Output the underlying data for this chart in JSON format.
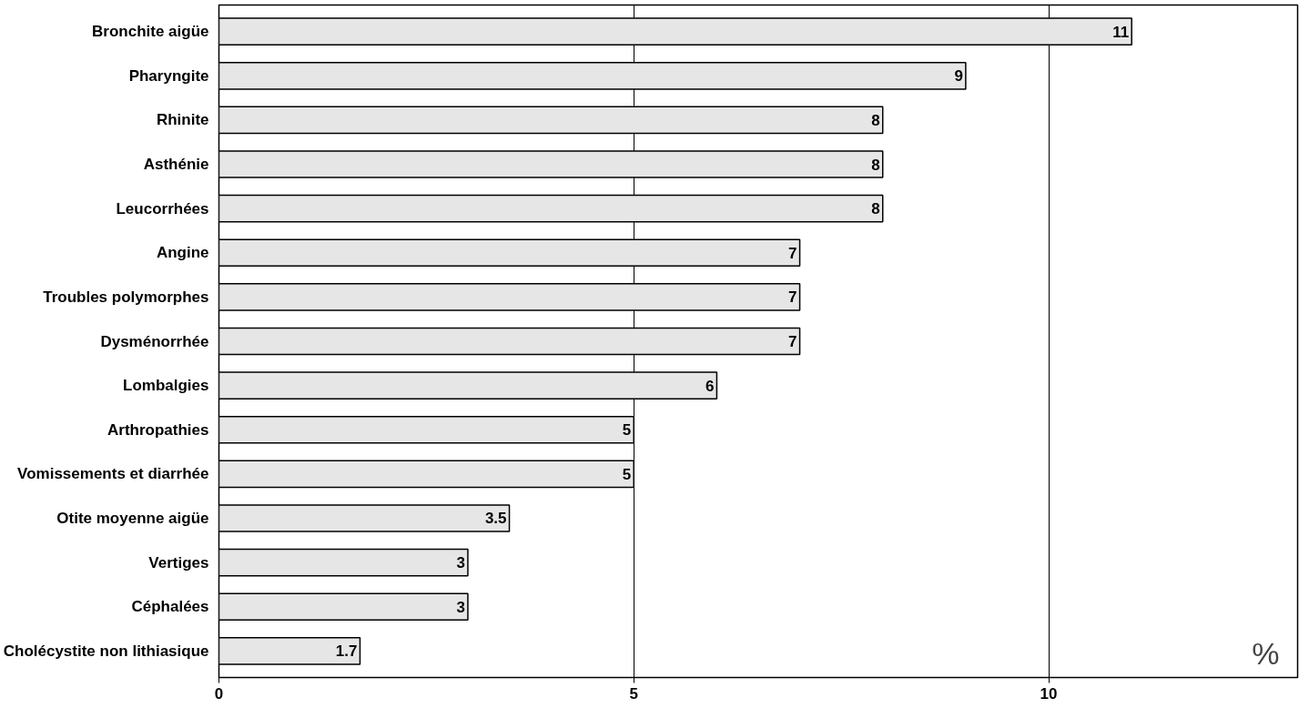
{
  "chart_data": {
    "type": "bar",
    "orientation": "horizontal",
    "xlabel": "%",
    "categories": [
      "Bronchite aigüe",
      "Pharyngite",
      "Rhinite",
      "Asthénie",
      "Leucorrhées",
      "Angine",
      "Troubles polymorphes",
      "Dysménorrhée",
      "Lombalgies",
      "Arthropathies",
      "Vomissements et diarrhée",
      "Otite moyenne aigüe",
      "Vertiges",
      "Céphalées",
      "Cholécystite non lithiasique"
    ],
    "values": [
      11,
      9,
      8,
      8,
      8,
      7,
      7,
      7,
      6,
      5,
      5,
      3.5,
      3,
      3,
      1.7
    ],
    "color": "#e6e6e6",
    "xlim": [
      0,
      13
    ],
    "xticks": [
      0,
      5,
      10
    ],
    "grid": "x",
    "data_labels": true
  }
}
